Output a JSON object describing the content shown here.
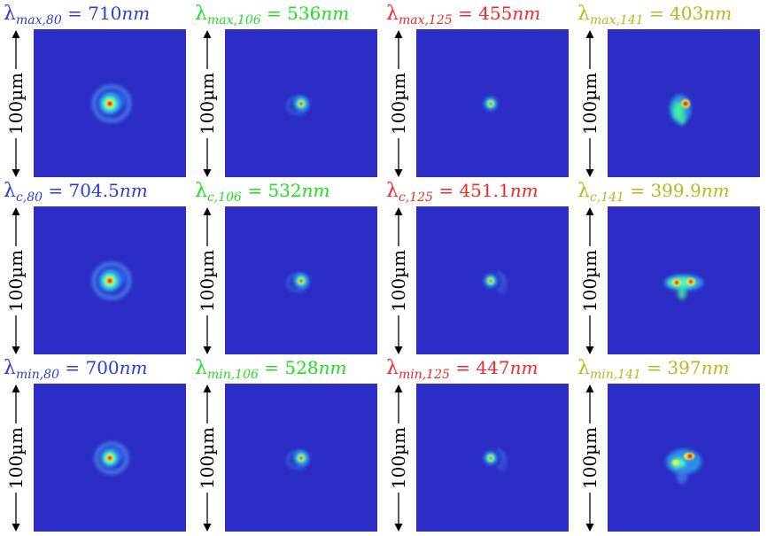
{
  "scale_bar_label": "100µm",
  "colors": {
    "background_field": "#2B2DC5",
    "series_80": "#2A3FD9",
    "series_106": "#22DD22",
    "series_125": "#EE2B2B",
    "series_141": "#B8B81C"
  },
  "grid": [
    [
      {
        "symbol": "λ",
        "subscript": "max,80",
        "eq": " = ",
        "value": "710",
        "unit": "nm",
        "color": "#2A3FD9",
        "spot": "halo-large"
      },
      {
        "symbol": "λ",
        "subscript": "max,106",
        "eq": " = ",
        "value": "536",
        "unit": "nm",
        "color": "#22DD22",
        "spot": "small"
      },
      {
        "symbol": "λ",
        "subscript": "max,125",
        "eq": " = ",
        "value": "455",
        "unit": "nm",
        "color": "#EE2B2B",
        "spot": "tiny"
      },
      {
        "symbol": "λ",
        "subscript": "max,141",
        "eq": " = ",
        "value": "403",
        "unit": "nm",
        "color": "#B8B81C",
        "spot": "distorted-a"
      }
    ],
    [
      {
        "symbol": "λ",
        "subscript": "c,80",
        "eq": " = ",
        "value": "704.5",
        "unit": "nm",
        "color": "#2A3FD9",
        "spot": "halo-large"
      },
      {
        "symbol": "λ",
        "subscript": "c,106",
        "eq": " = ",
        "value": "532",
        "unit": "nm",
        "color": "#22DD22",
        "spot": "small"
      },
      {
        "symbol": "λ",
        "subscript": "c,125",
        "eq": " = ",
        "value": "451.1",
        "unit": "nm",
        "color": "#EE2B2B",
        "spot": "ringed"
      },
      {
        "symbol": "λ",
        "subscript": "c,141",
        "eq": " = ",
        "value": "399.9",
        "unit": "nm",
        "color": "#B8B81C",
        "spot": "distorted-b"
      }
    ],
    [
      {
        "symbol": "λ",
        "subscript": "min,80",
        "eq": " = ",
        "value": "700",
        "unit": "nm",
        "color": "#2A3FD9",
        "spot": "halo-medium"
      },
      {
        "symbol": "λ",
        "subscript": "min,106",
        "eq": " = ",
        "value": "528",
        "unit": "nm",
        "color": "#22DD22",
        "spot": "small"
      },
      {
        "symbol": "λ",
        "subscript": "min,125",
        "eq": " = ",
        "value": "447",
        "unit": "nm",
        "color": "#EE2B2B",
        "spot": "tiny-ringed"
      },
      {
        "symbol": "λ",
        "subscript": "min,141",
        "eq": " = ",
        "value": "397",
        "unit": "nm",
        "color": "#B8B81C",
        "spot": "distorted-c"
      }
    ]
  ]
}
